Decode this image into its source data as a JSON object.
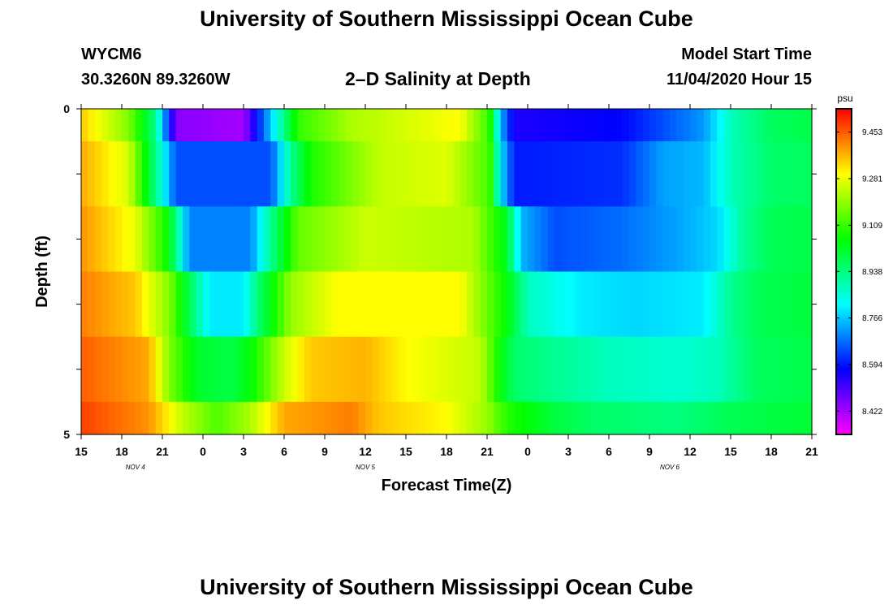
{
  "header": {
    "title": "University of Southern Mississippi Ocean Cube",
    "station": "WYCM6",
    "location": "30.3260N 89.3260W",
    "plot_title": "2–D Salinity at Depth",
    "start_label": "Model Start Time",
    "start_value": "11/04/2020 Hour 15"
  },
  "footer": {
    "title": "University of Southern Mississippi Ocean Cube"
  },
  "chart_data": {
    "type": "heatmap",
    "title": "2–D Salinity at Depth",
    "xlabel": "Forecast Time(Z)",
    "ylabel": "Depth (ft)",
    "x_range_hours": [
      0,
      54
    ],
    "x_start_hour_z": 15,
    "x_ticks": [
      "15",
      "18",
      "21",
      "0",
      "3",
      "6",
      "9",
      "12",
      "15",
      "18",
      "21",
      "0",
      "3",
      "6",
      "9",
      "12",
      "15",
      "18",
      "21"
    ],
    "date_labels": [
      {
        "label": "NOV 4",
        "hour": 4
      },
      {
        "label": "NOV 5",
        "hour": 21
      },
      {
        "label": "NOV 6",
        "hour": 43.5
      }
    ],
    "y_range": [
      0,
      5
    ],
    "y_tick_labels": [
      {
        "value": 0,
        "label": "0"
      },
      {
        "value": 5,
        "label": "5"
      }
    ],
    "y_minor_ticks": [
      1,
      2,
      3,
      4
    ],
    "colorbar": {
      "unit": "psu",
      "min": 8.336,
      "max": 9.539,
      "tick_values": [
        "9.453",
        "9.281",
        "9.109",
        "8.938",
        "8.766",
        "8.594",
        "8.422"
      ]
    },
    "layers": [
      {
        "depth_range": [
          0,
          0.5
        ],
        "knots": [
          [
            0,
            9.35
          ],
          [
            3.5,
            9.18
          ],
          [
            5.5,
            8.93
          ],
          [
            7,
            8.45
          ],
          [
            12,
            8.42
          ],
          [
            14.5,
            8.85
          ],
          [
            16,
            9.1
          ],
          [
            20,
            9.22
          ],
          [
            28,
            9.3
          ],
          [
            30.2,
            9.1
          ],
          [
            31,
            8.75
          ],
          [
            32,
            8.55
          ],
          [
            40,
            8.58
          ],
          [
            46,
            8.72
          ],
          [
            48,
            8.88
          ],
          [
            51,
            8.97
          ],
          [
            54,
            8.99
          ]
        ]
      },
      {
        "depth_range": [
          0.5,
          1.5
        ],
        "knots": [
          [
            0,
            9.38
          ],
          [
            3.5,
            9.26
          ],
          [
            5.5,
            8.93
          ],
          [
            7,
            8.65
          ],
          [
            14,
            8.65
          ],
          [
            15.5,
            8.92
          ],
          [
            17,
            9.08
          ],
          [
            22,
            9.24
          ],
          [
            27,
            9.27
          ],
          [
            30.2,
            9.12
          ],
          [
            31,
            8.8
          ],
          [
            32,
            8.6
          ],
          [
            40,
            8.62
          ],
          [
            43,
            8.73
          ],
          [
            46,
            8.75
          ],
          [
            48,
            8.88
          ],
          [
            51,
            8.96
          ],
          [
            54,
            8.97
          ]
        ]
      },
      {
        "depth_range": [
          1.5,
          2.5
        ],
        "knots": [
          [
            0,
            9.4
          ],
          [
            4,
            9.28
          ],
          [
            6.5,
            9.05
          ],
          [
            8,
            8.7
          ],
          [
            12.5,
            8.7
          ],
          [
            14,
            8.92
          ],
          [
            16,
            9.15
          ],
          [
            21,
            9.25
          ],
          [
            29,
            9.22
          ],
          [
            31.5,
            9.02
          ],
          [
            32.5,
            8.75
          ],
          [
            35,
            8.65
          ],
          [
            40,
            8.68
          ],
          [
            44,
            8.73
          ],
          [
            47,
            8.78
          ],
          [
            49,
            8.92
          ],
          [
            51,
            8.98
          ],
          [
            54,
            8.99
          ]
        ]
      },
      {
        "depth_range": [
          2.5,
          3.5
        ],
        "knots": [
          [
            0,
            9.42
          ],
          [
            4,
            9.35
          ],
          [
            6.5,
            9.18
          ],
          [
            8.5,
            8.92
          ],
          [
            9.5,
            8.8
          ],
          [
            12,
            8.8
          ],
          [
            13,
            8.94
          ],
          [
            15.5,
            9.2
          ],
          [
            19,
            9.3
          ],
          [
            28,
            9.3
          ],
          [
            31.5,
            9.05
          ],
          [
            33,
            8.88
          ],
          [
            37,
            8.8
          ],
          [
            41,
            8.78
          ],
          [
            46,
            8.8
          ],
          [
            48,
            8.92
          ],
          [
            50,
            8.98
          ],
          [
            54,
            9.0
          ]
        ]
      },
      {
        "depth_range": [
          3.5,
          4.5
        ],
        "knots": [
          [
            0,
            9.45
          ],
          [
            5,
            9.38
          ],
          [
            6.5,
            9.18
          ],
          [
            8.5,
            9.02
          ],
          [
            11,
            8.99
          ],
          [
            12.5,
            9.05
          ],
          [
            15,
            9.25
          ],
          [
            17,
            9.35
          ],
          [
            21,
            9.37
          ],
          [
            24,
            9.3
          ],
          [
            29.5,
            9.24
          ],
          [
            31,
            9.05
          ],
          [
            32,
            8.96
          ],
          [
            35,
            8.92
          ],
          [
            39,
            8.88
          ],
          [
            44,
            8.86
          ],
          [
            47,
            8.88
          ],
          [
            50,
            8.97
          ],
          [
            54,
            8.99
          ]
        ]
      },
      {
        "depth_range": [
          4.5,
          5
        ],
        "knots": [
          [
            0,
            9.48
          ],
          [
            5,
            9.4
          ],
          [
            7.5,
            9.24
          ],
          [
            10,
            9.13
          ],
          [
            12.5,
            9.22
          ],
          [
            15,
            9.38
          ],
          [
            20,
            9.42
          ],
          [
            22,
            9.35
          ],
          [
            27,
            9.3
          ],
          [
            30,
            9.2
          ],
          [
            31.5,
            9.09
          ],
          [
            35,
            9.0
          ],
          [
            38,
            8.96
          ],
          [
            44,
            8.94
          ],
          [
            48,
            8.98
          ],
          [
            52,
            9.0
          ],
          [
            54,
            9.01
          ]
        ]
      }
    ]
  }
}
